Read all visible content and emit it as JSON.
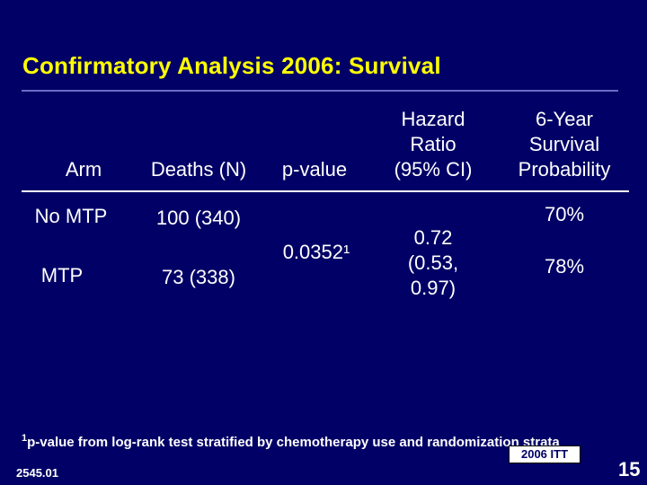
{
  "slide": {
    "title": "Confirmatory Analysis 2006: Survival"
  },
  "table": {
    "headers": {
      "arm": "Arm",
      "deaths": "Deaths (N)",
      "p_value": "p-value",
      "hazard_ratio": [
        "Hazard",
        "Ratio",
        "(95% CI)"
      ],
      "survival": [
        "6-Year",
        "Survival",
        "Probability"
      ]
    },
    "rows": [
      {
        "arm": "No MTP",
        "deaths": "100 (340)",
        "survival": "70%"
      },
      {
        "arm": "MTP",
        "deaths": "73 (338)",
        "survival": "78%"
      }
    ],
    "shared": {
      "p_value": "0.0352¹",
      "hazard_ratio": [
        "0.72",
        "(0.53,",
        "0.97)"
      ]
    }
  },
  "footnote": {
    "marker": "1",
    "text": "p-value from log-rank test stratified by chemotherapy use and randomization strata"
  },
  "badge": "2006 ITT",
  "doc_code": "2545.01",
  "page_number": "15",
  "colors": {
    "background": "#000066",
    "title": "#ffff00",
    "text": "#ffffff"
  }
}
